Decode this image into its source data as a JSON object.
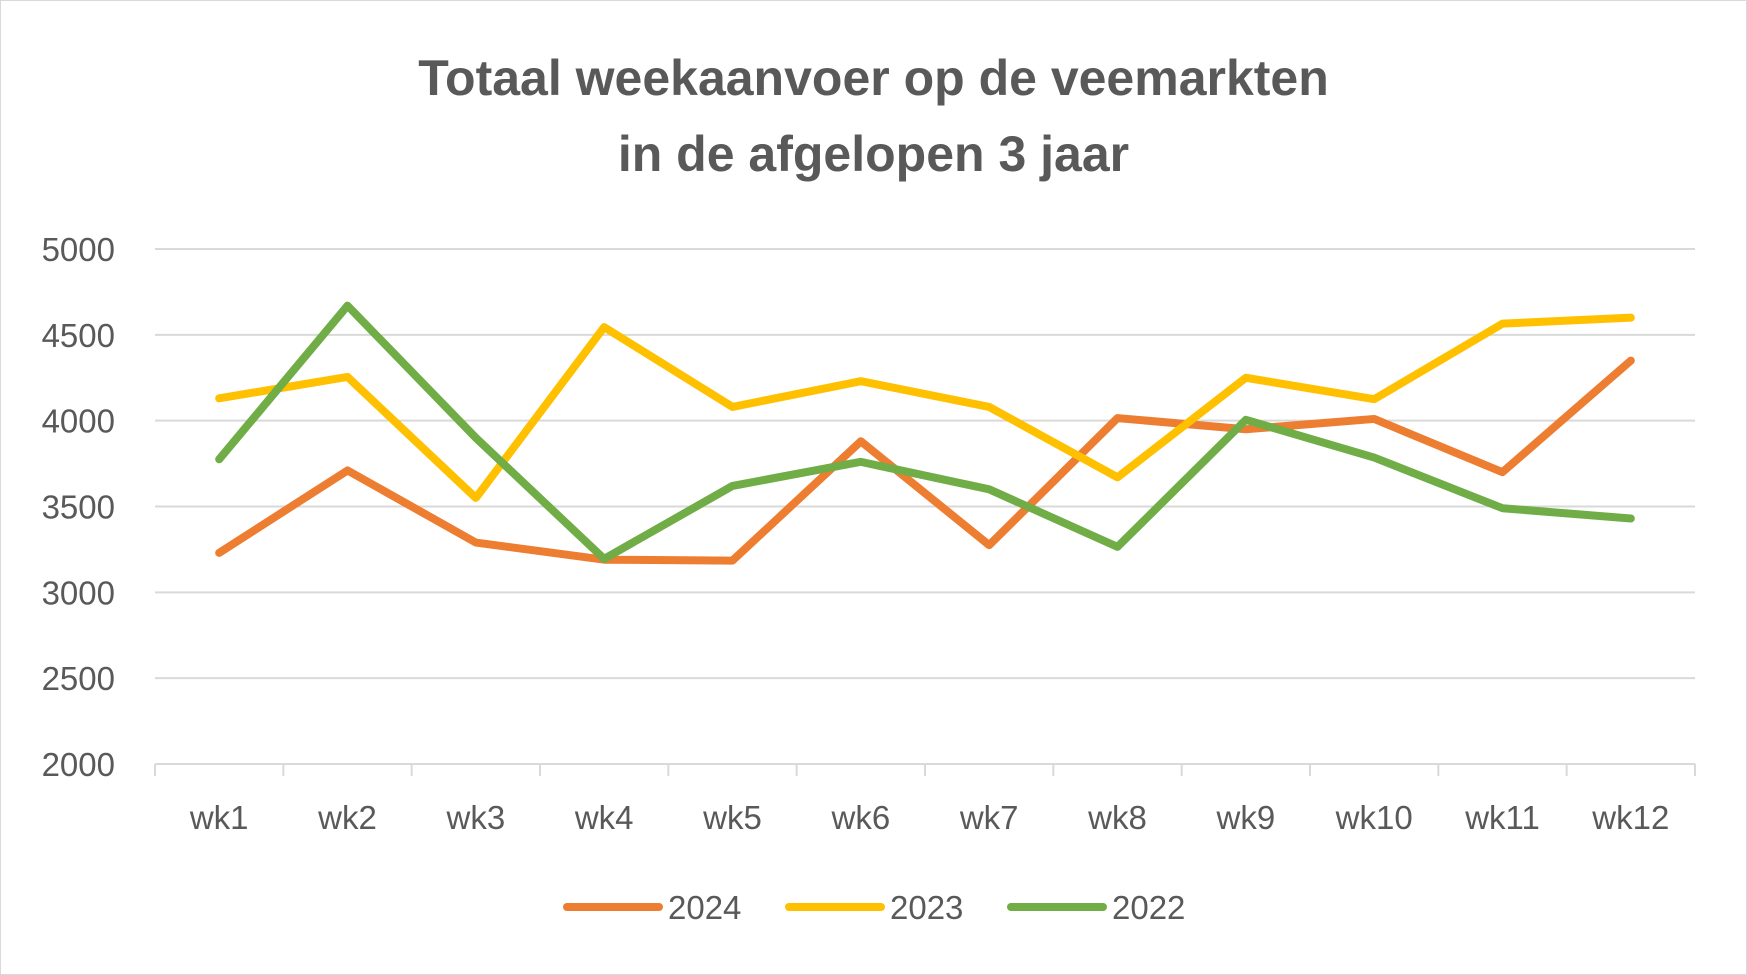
{
  "chart_data": {
    "type": "line",
    "title_lines": [
      "Totaal weekaanvoer op de veemarkten",
      "in de afgelopen 3 jaar"
    ],
    "categories": [
      "wk1",
      "wk2",
      "wk3",
      "wk4",
      "wk5",
      "wk6",
      "wk7",
      "wk8",
      "wk9",
      "wk10",
      "wk11",
      "wk12"
    ],
    "ylim": [
      2000,
      5000
    ],
    "yticks": [
      "2000",
      "2500",
      "3000",
      "3500",
      "4000",
      "4500",
      "5000"
    ],
    "grid": true,
    "legend_position": "bottom",
    "series": [
      {
        "name": "2024",
        "color": "#ED7D31",
        "values": [
          3230,
          3710,
          3290,
          3190,
          3185,
          3880,
          3275,
          4015,
          3950,
          4010,
          3700,
          4350
        ]
      },
      {
        "name": "2023",
        "color": "#FFC000",
        "values": [
          4130,
          4255,
          3550,
          4545,
          4080,
          4230,
          4080,
          3670,
          4250,
          4125,
          4565,
          4600
        ]
      },
      {
        "name": "2022",
        "color": "#70AD47",
        "values": [
          3775,
          4670,
          3900,
          3195,
          3620,
          3760,
          3600,
          3265,
          4005,
          3785,
          3490,
          3430
        ]
      }
    ]
  }
}
